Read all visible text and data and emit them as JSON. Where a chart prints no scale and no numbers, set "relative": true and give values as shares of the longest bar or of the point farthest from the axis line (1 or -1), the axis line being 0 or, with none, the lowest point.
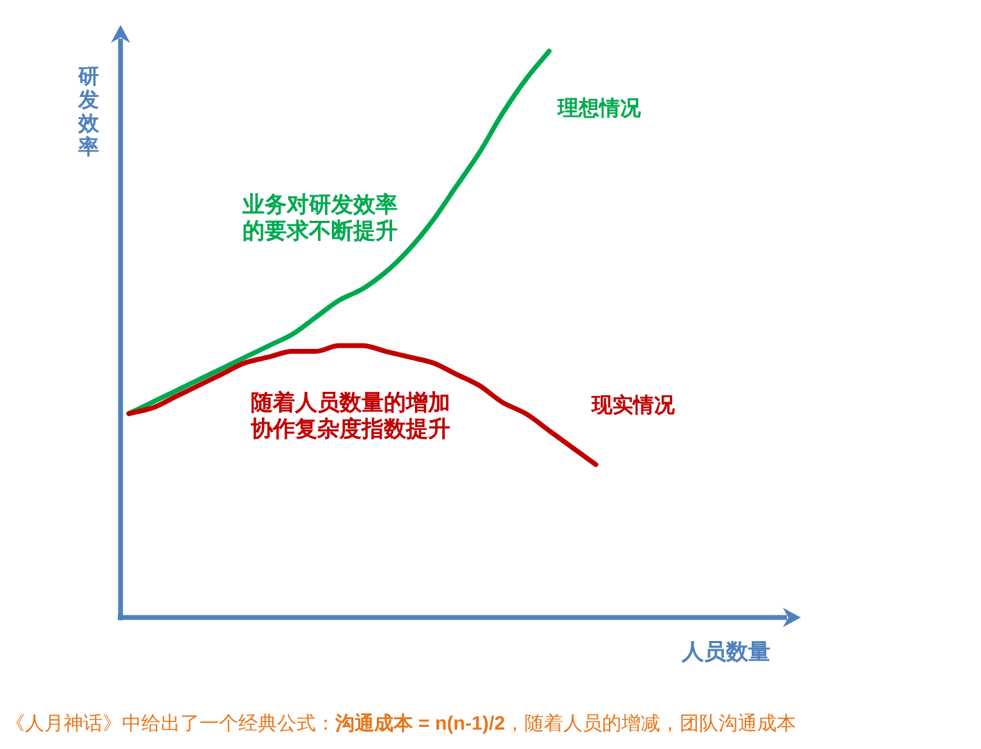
{
  "chart_data": {
    "type": "line",
    "relative": true,
    "xlabel": "人员数量",
    "ylabel": "研发效率",
    "categories": [
      null,
      null,
      null,
      null,
      null,
      null,
      null,
      null,
      null,
      null,
      null,
      null,
      null,
      null,
      null,
      null,
      null,
      null,
      null,
      null,
      null
    ],
    "series": [
      {
        "name": "理想情况",
        "color": "#00a94f",
        "values": [
          0.36,
          0.38,
          0.4,
          0.42,
          0.44,
          0.46,
          0.48,
          0.5,
          0.53,
          0.56,
          0.58,
          0.61,
          0.65,
          0.7,
          0.76,
          0.82,
          0.89,
          0.95,
          1.0,
          null,
          null
        ]
      },
      {
        "name": "现实情况",
        "color": "#c00000",
        "values": [
          0.36,
          0.37,
          0.39,
          0.41,
          0.43,
          0.45,
          0.46,
          0.47,
          0.47,
          0.48,
          0.48,
          0.47,
          0.46,
          0.45,
          0.43,
          0.41,
          0.38,
          0.36,
          0.33,
          0.3,
          0.27
        ]
      }
    ],
    "annotations": [
      "业务对研发效率的要求不断提升",
      "随着人员数量的增加协作复杂度指数提升",
      "《人月神话》中给出了一个经典公式：**沟通成本 = n(n-1)/2**，随着人员的增减，团队沟通成本"
    ]
  }
}
